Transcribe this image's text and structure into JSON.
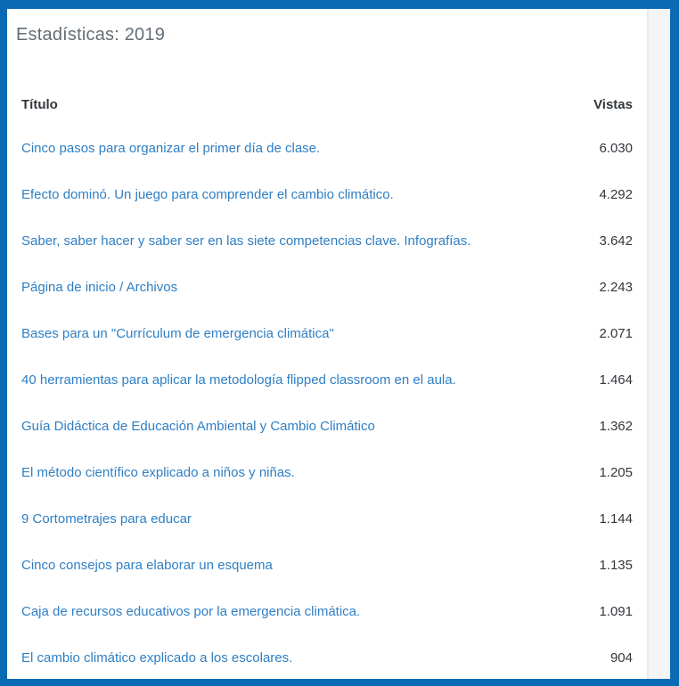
{
  "panel": {
    "title": "Estadísticas: 2019"
  },
  "table": {
    "columns": {
      "title": "Título",
      "views": "Vistas"
    },
    "rows": [
      {
        "title": "Cinco pasos para organizar el primer día de clase.",
        "views": "6.030"
      },
      {
        "title": "Efecto dominó. Un juego para comprender el cambio climático.",
        "views": "4.292"
      },
      {
        "title": "Saber, saber hacer y saber ser en las siete competencias clave. Infografías.",
        "views": "3.642"
      },
      {
        "title": "Página de inicio / Archivos",
        "views": "2.243"
      },
      {
        "title": "Bases para un \"Currículum de emergencia climática\"",
        "views": "2.071"
      },
      {
        "title": "40 herramientas para aplicar la metodología flipped classroom en el aula.",
        "views": "1.464"
      },
      {
        "title": "Guía Didáctica de Educación Ambiental y Cambio Climático",
        "views": "1.362"
      },
      {
        "title": "El método científico explicado a niños y niñas.",
        "views": "1.205"
      },
      {
        "title": "9 Cortometrajes para educar",
        "views": "1.144"
      },
      {
        "title": "Cinco consejos para elaborar un esquema",
        "views": "1.135"
      },
      {
        "title": "Caja de recursos educativos por la emergencia climática.",
        "views": "1.091"
      },
      {
        "title": "El cambio climático explicado a los escolares.",
        "views": "904"
      }
    ]
  },
  "colors": {
    "border": "#0a6bb5",
    "link": "#2f7fc3",
    "text_dark": "#32373c",
    "heading_gray": "#636d75",
    "gutter_bg": "#f4f5f6"
  }
}
